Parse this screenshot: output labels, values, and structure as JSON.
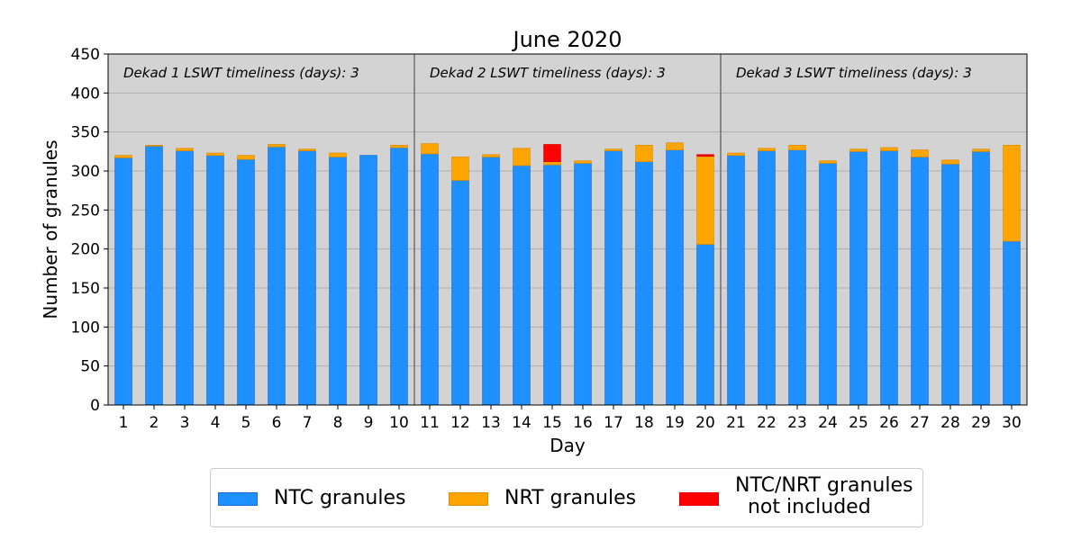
{
  "chart_data": {
    "type": "bar",
    "stacked": true,
    "title": "June 2020",
    "xlabel": "Day",
    "ylabel": "Number of granules",
    "ylim": [
      0,
      450
    ],
    "yticks": [
      "0",
      "50",
      "100",
      "150",
      "200",
      "250",
      "300",
      "350",
      "400",
      "450"
    ],
    "grid": "horizontal",
    "background": "#d3d3d3",
    "categories": [
      "1",
      "2",
      "3",
      "4",
      "5",
      "6",
      "7",
      "8",
      "9",
      "10",
      "11",
      "12",
      "13",
      "14",
      "15",
      "16",
      "17",
      "18",
      "19",
      "20",
      "21",
      "22",
      "23",
      "24",
      "25",
      "26",
      "27",
      "28",
      "29",
      "30"
    ],
    "series": [
      {
        "name": "NTC granules",
        "color": "#1e90ff",
        "values": [
          317,
          332,
          326,
          320,
          315,
          331,
          326,
          318,
          320,
          330,
          322,
          288,
          318,
          307,
          308,
          310,
          326,
          312,
          327,
          206,
          320,
          326,
          327,
          310,
          325,
          326,
          318,
          309,
          325,
          210
        ]
      },
      {
        "name": "NRT granules",
        "color": "#ffa500",
        "values": [
          3,
          1,
          3,
          3,
          5,
          3,
          2,
          5,
          0,
          3,
          13,
          30,
          3,
          22,
          4,
          3,
          2,
          21,
          9,
          113,
          3,
          3,
          6,
          3,
          3,
          4,
          9,
          5,
          3,
          123
        ]
      },
      {
        "name": "NTC/NRT granules\n  not included",
        "color": "#ff0000",
        "values": [
          0,
          0,
          0,
          0,
          0,
          0,
          0,
          0,
          0,
          0,
          0,
          0,
          0,
          0,
          22,
          0,
          0,
          0,
          0,
          2,
          0,
          0,
          0,
          0,
          0,
          0,
          0,
          0,
          0,
          0
        ]
      }
    ],
    "dekad_dividers_after_day": [
      10,
      20
    ],
    "annotations": [
      "Dekad 1 LSWT timeliness (days): 3",
      "Dekad 2 LSWT timeliness (days): 3",
      "Dekad 3 LSWT timeliness (days): 3"
    ],
    "legend_placement": "bottom-center"
  }
}
